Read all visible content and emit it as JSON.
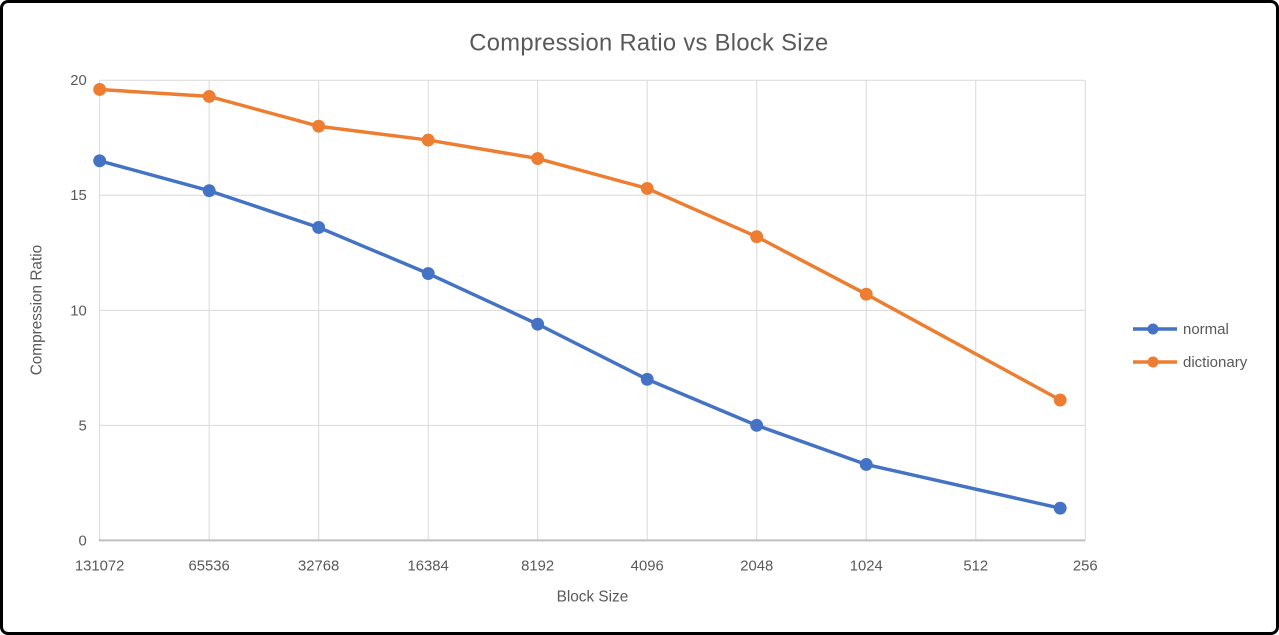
{
  "window": {
    "background": "#ffffff",
    "border_color": "#000000"
  },
  "chart_data": {
    "type": "line",
    "title": "Compression Ratio vs Block Size",
    "xlabel": "Block Size",
    "ylabel": "Compression Ratio",
    "x_scale": "log2_descending",
    "xlim": [
      131072,
      256
    ],
    "x_tick_labels": [
      "131072",
      "65536",
      "32768",
      "16384",
      "8192",
      "4096",
      "2048",
      "1024",
      "512",
      "256"
    ],
    "ylim": [
      0,
      20
    ],
    "y_ticks": [
      0,
      5,
      10,
      15,
      20
    ],
    "grid": true,
    "legend_position": "right",
    "x": [
      131072,
      65536,
      32768,
      16384,
      8192,
      4096,
      2048,
      1024,
      300
    ],
    "series": [
      {
        "name": "normal",
        "color": "#4472C4",
        "values": [
          16.5,
          15.2,
          13.6,
          11.6,
          9.4,
          7.0,
          5.0,
          3.3,
          1.4
        ]
      },
      {
        "name": "dictionary",
        "color": "#ED7D31",
        "values": [
          19.6,
          19.3,
          18.0,
          17.4,
          16.6,
          15.3,
          13.2,
          10.7,
          6.1
        ]
      }
    ],
    "colors": {
      "gridline": "#D9D9D9",
      "axis_line": "#BFBFBF",
      "text": "#595959"
    }
  }
}
